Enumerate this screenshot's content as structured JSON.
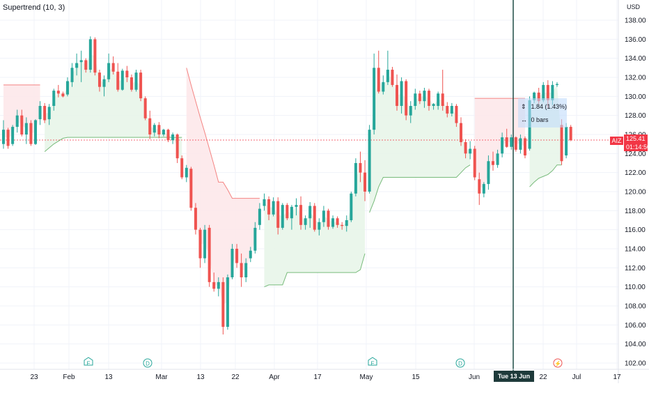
{
  "indicator_label": "Supertrend (10, 3)",
  "currency": "USD",
  "symbol": "AIZ",
  "last_price": "125.41",
  "countdown": "01:14:50",
  "crosshair_date": "Tue 13 Jun '23",
  "measure": {
    "change": "1.84 (1.43%)",
    "bars": "0 bars"
  },
  "events": [
    {
      "label": "E",
      "kind": "earnings",
      "date": "Feb 7"
    },
    {
      "label": "D",
      "kind": "dividend",
      "date": "Feb 28"
    },
    {
      "label": "E",
      "kind": "earnings",
      "date": "May 2"
    },
    {
      "label": "D",
      "kind": "dividend",
      "date": "Jun 5"
    },
    {
      "label": "⚡",
      "kind": "split",
      "date": "Jun 23"
    }
  ],
  "colors": {
    "up": "#26a69a",
    "down": "#ef5350",
    "st_up_fill": "#e8f5e9",
    "st_down_fill": "#fde8ea",
    "crosshair": "#1e4d47"
  },
  "chart_data": {
    "type": "candlestick",
    "title": "Supertrend (10, 3)",
    "y_axis_label": "USD",
    "ylim": [
      101,
      139
    ],
    "y_ticks": [
      "138.00",
      "136.00",
      "134.00",
      "132.00",
      "130.00",
      "128.00",
      "126.00",
      "124.00",
      "122.00",
      "120.00",
      "118.00",
      "116.00",
      "114.00",
      "112.00",
      "110.00",
      "108.00",
      "106.00",
      "104.00",
      "102.00"
    ],
    "x_ticks": [
      "23",
      "Feb",
      "13",
      "Mar",
      "13",
      "22",
      "Apr",
      "17",
      "May",
      "15",
      "Jun",
      "22",
      "Jul",
      "17"
    ],
    "candles": [
      [
        125.0,
        127.5,
        124.5,
        126.5
      ],
      [
        126.5,
        126.7,
        124.5,
        124.8
      ],
      [
        125.0,
        127.0,
        124.8,
        126.8
      ],
      [
        126.8,
        128.6,
        126.2,
        128.0
      ],
      [
        128.0,
        128.6,
        125.8,
        126.0
      ],
      [
        126.0,
        127.8,
        125.0,
        127.2
      ],
      [
        127.2,
        127.5,
        124.8,
        125.0
      ],
      [
        125.0,
        127.6,
        124.9,
        127.5
      ],
      [
        127.6,
        129.5,
        127.0,
        129.0
      ],
      [
        129.0,
        129.3,
        127.2,
        127.5
      ],
      [
        127.6,
        129.2,
        127.0,
        128.9
      ],
      [
        129.0,
        130.8,
        128.5,
        130.6
      ],
      [
        130.6,
        131.2,
        129.9,
        130.3
      ],
      [
        130.3,
        130.5,
        129.9,
        130.0
      ],
      [
        130.2,
        132.0,
        130.0,
        131.6
      ],
      [
        131.5,
        133.5,
        131.0,
        133.0
      ],
      [
        133.0,
        134.5,
        132.2,
        133.5
      ],
      [
        133.6,
        134.8,
        131.5,
        133.8
      ],
      [
        133.8,
        134.0,
        132.5,
        132.8
      ],
      [
        132.8,
        136.3,
        132.5,
        136.0
      ],
      [
        136.0,
        136.2,
        132.2,
        132.5
      ],
      [
        132.5,
        132.8,
        130.5,
        131.0
      ],
      [
        131.0,
        132.2,
        130.0,
        131.8
      ],
      [
        131.8,
        134.5,
        131.5,
        133.5
      ],
      [
        133.5,
        134.2,
        132.3,
        132.6
      ],
      [
        132.6,
        133.5,
        130.5,
        130.7
      ],
      [
        130.7,
        132.9,
        130.6,
        132.7
      ],
      [
        132.7,
        133.2,
        131.5,
        132.0
      ],
      [
        132.0,
        132.3,
        130.5,
        130.7
      ],
      [
        130.7,
        132.8,
        130.5,
        132.5
      ],
      [
        132.5,
        132.8,
        129.5,
        129.8
      ],
      [
        129.8,
        130.0,
        127.5,
        127.7
      ],
      [
        127.7,
        128.5,
        125.5,
        126.0
      ],
      [
        126.2,
        127.2,
        125.8,
        127.0
      ],
      [
        127.0,
        127.3,
        125.6,
        126.0
      ],
      [
        126.0,
        126.6,
        125.8,
        126.5
      ],
      [
        126.5,
        126.6,
        125.2,
        125.4
      ],
      [
        125.4,
        126.2,
        125.0,
        126.0
      ],
      [
        126.0,
        126.1,
        123.0,
        123.5
      ],
      [
        123.5,
        123.8,
        121.3,
        121.5
      ],
      [
        121.5,
        122.8,
        121.0,
        122.5
      ],
      [
        122.4,
        122.6,
        118.0,
        118.3
      ],
      [
        118.3,
        118.8,
        115.5,
        116.0
      ],
      [
        116.0,
        116.2,
        112.0,
        113.0
      ],
      [
        113.0,
        116.5,
        112.5,
        116.0
      ],
      [
        116.2,
        116.5,
        110.0,
        110.5
      ],
      [
        110.5,
        111.5,
        109.5,
        109.8
      ],
      [
        109.8,
        111.0,
        109.0,
        110.5
      ],
      [
        110.5,
        111.0,
        105.0,
        105.8
      ],
      [
        105.8,
        111.3,
        105.5,
        111.0
      ],
      [
        111.0,
        114.5,
        110.8,
        114.0
      ],
      [
        114.0,
        114.5,
        112.0,
        112.5
      ],
      [
        112.5,
        113.5,
        110.0,
        111.0
      ],
      [
        111.0,
        113.0,
        110.5,
        112.5
      ],
      [
        113.0,
        114.2,
        112.6,
        113.8
      ],
      [
        113.8,
        116.8,
        113.5,
        116.2
      ],
      [
        116.5,
        118.8,
        116.0,
        118.2
      ],
      [
        118.5,
        119.8,
        118.0,
        119.2
      ],
      [
        119.2,
        119.5,
        117.0,
        117.6
      ],
      [
        117.6,
        119.4,
        117.4,
        119.0
      ],
      [
        119.0,
        119.4,
        115.5,
        116.2
      ],
      [
        116.2,
        118.8,
        116.0,
        118.6
      ],
      [
        118.6,
        118.8,
        117.0,
        117.2
      ],
      [
        117.2,
        118.6,
        116.0,
        118.4
      ],
      [
        118.4,
        119.3,
        117.5,
        118.6
      ],
      [
        118.6,
        119.5,
        116.0,
        116.5
      ],
      [
        116.5,
        117.5,
        116.0,
        117.2
      ],
      [
        117.2,
        118.9,
        116.2,
        118.5
      ],
      [
        118.5,
        118.8,
        115.8,
        116.0
      ],
      [
        116.0,
        117.2,
        115.4,
        116.8
      ],
      [
        116.8,
        118.5,
        116.3,
        118.0
      ],
      [
        118.0,
        118.2,
        116.0,
        116.3
      ],
      [
        116.3,
        117.5,
        116.1,
        117.2
      ],
      [
        117.2,
        117.4,
        116.2,
        116.5
      ],
      [
        116.5,
        116.8,
        116.0,
        116.4
      ],
      [
        116.4,
        117.5,
        115.8,
        117.0
      ],
      [
        117.0,
        120.0,
        116.8,
        119.8
      ],
      [
        119.8,
        123.5,
        119.5,
        123.0
      ],
      [
        123.0,
        124.2,
        121.0,
        122.0
      ],
      [
        122.0,
        123.3,
        119.0,
        120.0
      ],
      [
        120.0,
        127.0,
        119.8,
        126.5
      ],
      [
        126.5,
        134.5,
        126.0,
        133.0
      ],
      [
        133.0,
        134.8,
        130.3,
        130.5
      ],
      [
        130.5,
        132.2,
        130.2,
        131.5
      ],
      [
        131.5,
        134.8,
        131.2,
        132.8
      ],
      [
        132.8,
        133.1,
        131.0,
        131.2
      ],
      [
        131.2,
        132.3,
        128.5,
        129.0
      ],
      [
        129.0,
        132.0,
        128.2,
        131.6
      ],
      [
        131.6,
        131.8,
        127.5,
        128.0
      ],
      [
        128.0,
        129.5,
        127.2,
        129.0
      ],
      [
        129.0,
        130.8,
        128.6,
        130.3
      ],
      [
        130.3,
        130.6,
        129.2,
        129.5
      ],
      [
        129.5,
        130.9,
        128.8,
        130.6
      ],
      [
        130.6,
        130.8,
        128.5,
        129.0
      ],
      [
        129.0,
        129.3,
        128.6,
        129.2
      ],
      [
        129.0,
        130.5,
        128.6,
        130.3
      ],
      [
        130.3,
        132.8,
        128.5,
        129.0
      ],
      [
        129.0,
        129.4,
        127.8,
        128.2
      ],
      [
        128.2,
        129.3,
        127.9,
        129.0
      ],
      [
        129.0,
        129.2,
        126.8,
        127.2
      ],
      [
        127.2,
        127.8,
        124.8,
        125.2
      ],
      [
        125.2,
        125.5,
        123.5,
        124.0
      ],
      [
        124.0,
        125.3,
        123.4,
        124.5
      ],
      [
        124.5,
        124.8,
        121.2,
        121.5
      ],
      [
        121.3,
        122.0,
        118.6,
        119.8
      ],
      [
        119.8,
        121.0,
        119.4,
        120.8
      ],
      [
        120.8,
        123.8,
        120.2,
        123.2
      ],
      [
        123.2,
        124.2,
        122.2,
        122.8
      ],
      [
        122.8,
        124.4,
        122.5,
        124.0
      ],
      [
        124.0,
        126.2,
        123.6,
        125.7
      ],
      [
        125.7,
        126.6,
        124.6,
        124.7
      ],
      [
        124.7,
        126.0,
        124.4,
        125.7
      ],
      [
        125.7,
        125.8,
        124.2,
        124.4
      ],
      [
        124.4,
        126.0,
        124.0,
        125.6
      ],
      [
        125.6,
        125.8,
        123.5,
        123.8
      ],
      [
        124.5,
        130.0,
        124.3,
        129.6
      ],
      [
        129.6,
        130.5,
        129.3,
        130.4
      ],
      [
        130.4,
        130.9,
        129.2,
        129.5
      ],
      [
        129.6,
        131.5,
        129.4,
        131.2
      ],
      [
        131.2,
        131.7,
        128.8,
        129.6
      ],
      [
        129.6,
        131.6,
        129.1,
        131.2
      ],
      [
        131.2,
        131.5,
        131.0,
        131.3
      ],
      [
        127.0,
        127.6,
        122.8,
        123.2
      ],
      [
        123.8,
        127.2,
        123.5,
        126.8
      ],
      [
        126.8,
        127.0,
        125.3,
        125.41
      ]
    ],
    "supertrend": [
      {
        "start": 0,
        "end": 8,
        "direction": "down",
        "values": [
          131.2,
          131.2,
          131.2,
          131.2,
          131.2,
          131.2,
          131.2,
          131.2,
          131.2
        ]
      },
      {
        "start": 9,
        "end": 39,
        "direction": "up",
        "values": [
          124.2,
          124.6,
          125.0,
          125.3,
          125.6,
          125.7,
          125.7,
          125.7,
          125.7,
          125.7,
          125.7,
          125.7,
          125.7,
          125.7,
          125.7,
          125.7,
          125.7,
          125.7,
          125.7,
          125.7,
          125.7,
          125.7,
          125.7,
          125.7,
          125.7,
          125.7,
          125.7,
          125.7,
          125.7,
          125.7,
          125.7
        ]
      },
      {
        "start": 40,
        "end": 56,
        "direction": "down",
        "values": [
          133.0,
          131.2,
          129.5,
          127.8,
          126.2,
          124.5,
          122.8,
          121.0,
          121.0,
          120.2,
          119.3,
          119.3,
          119.3,
          119.3,
          119.3,
          119.3,
          119.3
        ]
      },
      {
        "start": 57,
        "end": 79,
        "direction": "up",
        "values": [
          110.0,
          110.2,
          110.2,
          110.2,
          110.2,
          111.5,
          111.5,
          111.5,
          111.5,
          111.5,
          111.5,
          111.5,
          111.5,
          111.5,
          111.5,
          111.5,
          111.5,
          111.5,
          111.5,
          111.5,
          111.5,
          111.8,
          113.5
        ]
      },
      {
        "start": 80,
        "end": 102,
        "direction": "up",
        "values": [
          117.8,
          119.0,
          120.5,
          121.5,
          121.5,
          121.5,
          121.5,
          121.5,
          121.5,
          121.5,
          121.5,
          121.5,
          121.5,
          121.5,
          121.5,
          121.5,
          121.5,
          121.5,
          121.5,
          121.5,
          122.0,
          122.5,
          122.8
        ]
      },
      {
        "start": 103,
        "end": 114,
        "direction": "down",
        "values": [
          129.8,
          129.8,
          129.8,
          129.8,
          129.8,
          129.8,
          129.8,
          129.8,
          129.8,
          129.8,
          129.8,
          129.8
        ]
      },
      {
        "start": 115,
        "end": 122,
        "direction": "up",
        "values": [
          120.5,
          121.0,
          121.4,
          121.6,
          121.8,
          122.2,
          122.8,
          122.8
        ]
      }
    ]
  }
}
